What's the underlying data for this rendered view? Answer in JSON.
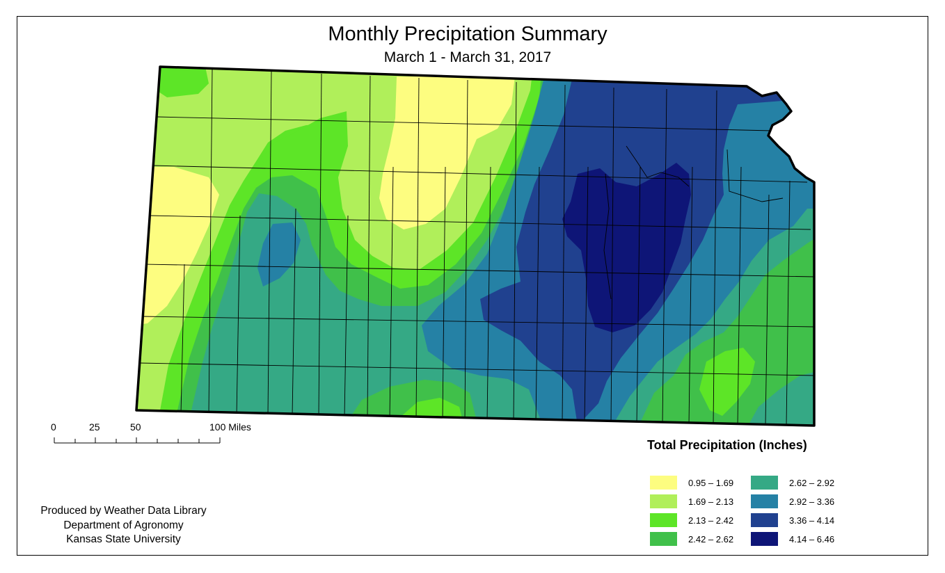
{
  "title": "Monthly Precipitation Summary",
  "subtitle": "March 1 - March 31, 2017",
  "scale_bar": {
    "ticks": [
      "0",
      "25",
      "50",
      "100 Miles"
    ]
  },
  "credits": {
    "line1": "Produced by Weather Data Library",
    "line2": "Department of Agronomy",
    "line3": "Kansas State University"
  },
  "legend": {
    "title": "Total Precipitation (Inches)",
    "items": [
      {
        "label": "0.95 – 1.69",
        "color": "#fdfd80"
      },
      {
        "label": "1.69 – 2.13",
        "color": "#b0ef5a"
      },
      {
        "label": "2.13 – 2.42",
        "color": "#5de527"
      },
      {
        "label": "2.42 – 2.62",
        "color": "#40c04a"
      },
      {
        "label": "2.62 – 2.92",
        "color": "#35a985"
      },
      {
        "label": "2.92 – 3.36",
        "color": "#2581a5"
      },
      {
        "label": "3.36 – 4.14",
        "color": "#20418f"
      },
      {
        "label": "4.14 – 6.46",
        "color": "#0e1577"
      }
    ]
  }
}
